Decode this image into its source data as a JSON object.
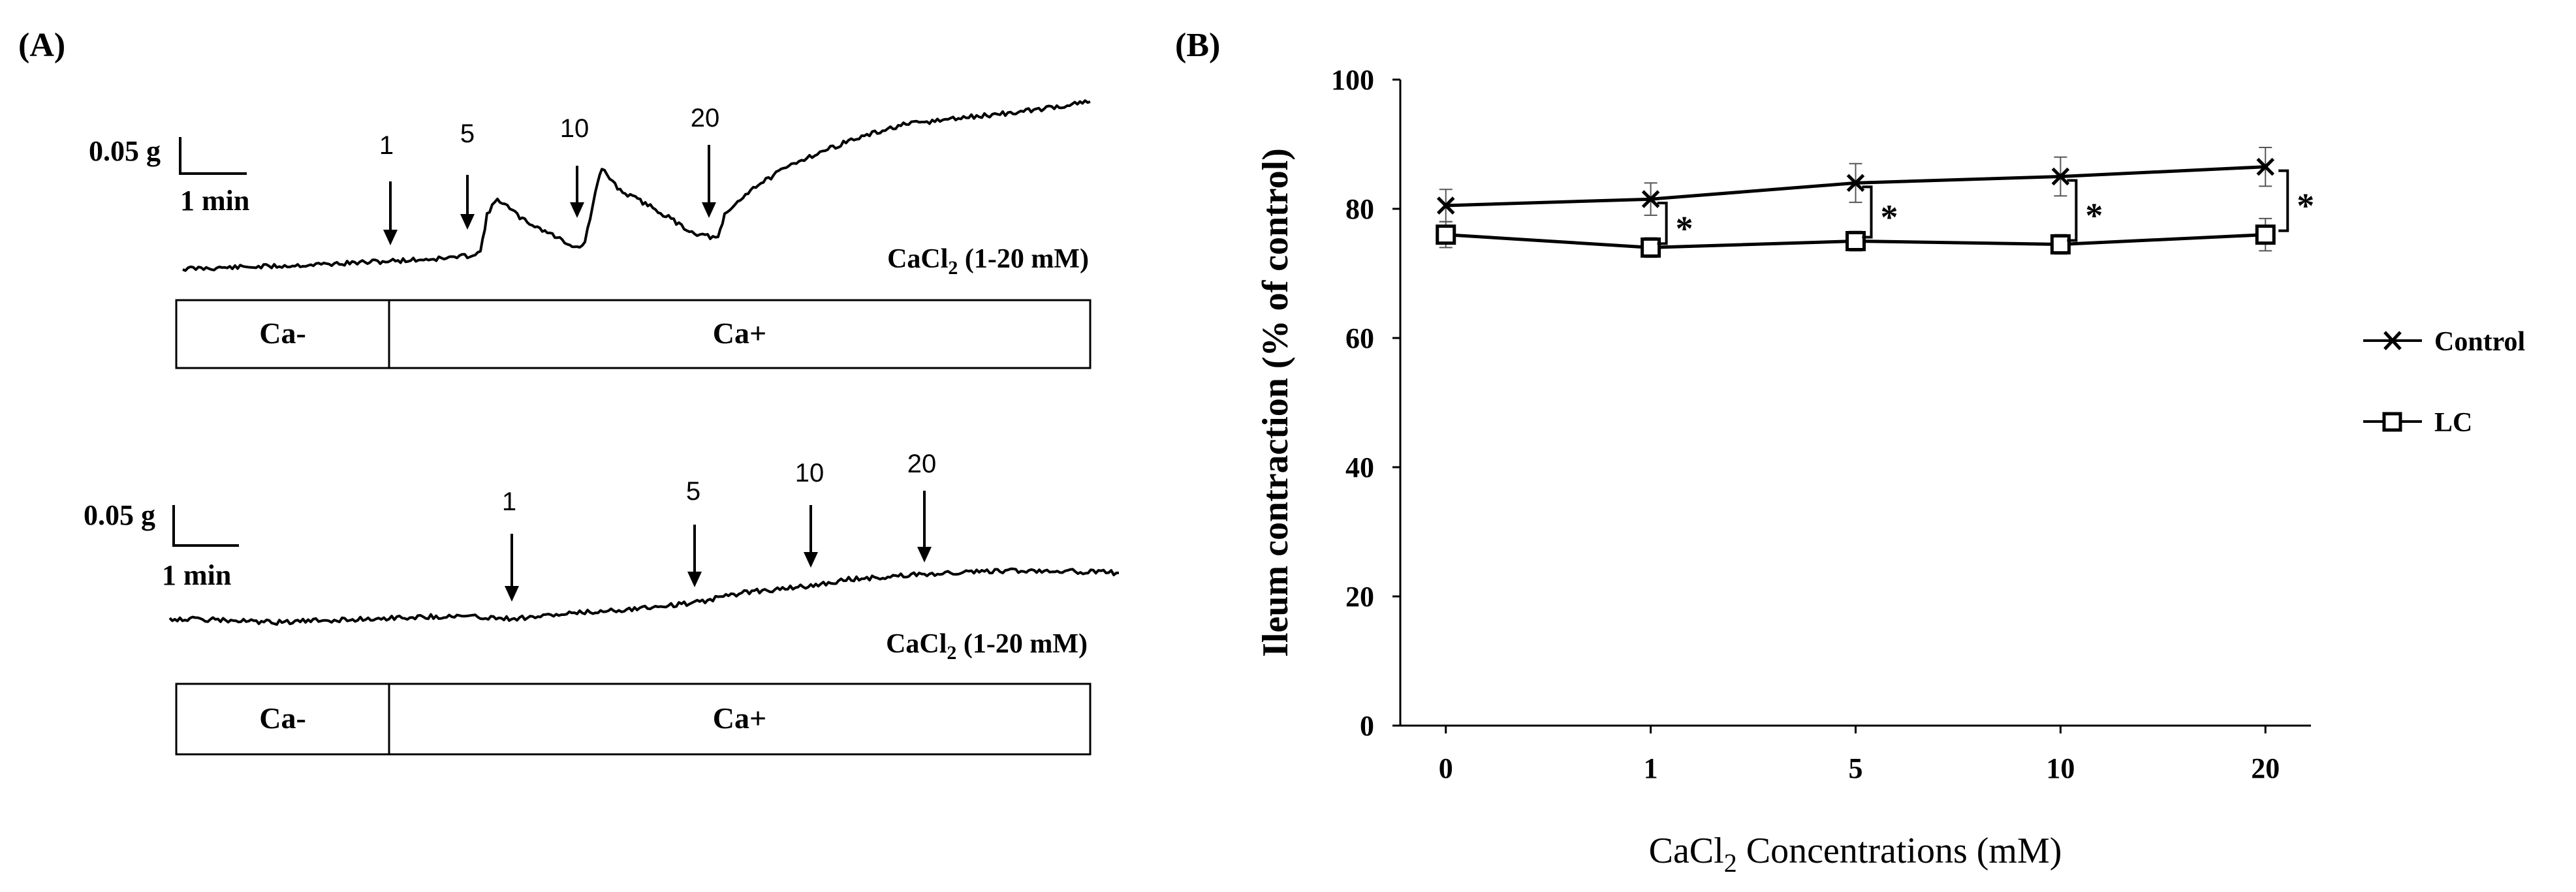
{
  "panel_a": {
    "label": "(A)",
    "trace1": {
      "scale_force": "0.05 g",
      "scale_time": "1 min",
      "arrows": [
        "1",
        "5",
        "10",
        "20"
      ],
      "caption_prefix": "CaCl",
      "caption_sub": "2",
      "caption_suffix": " (1-20 mM)",
      "box_left": "Ca-",
      "box_right": "Ca+"
    },
    "trace2": {
      "scale_force": "0.05 g",
      "scale_time": "1 min",
      "arrows": [
        "1",
        "5",
        "10",
        "20"
      ],
      "caption_prefix": "CaCl",
      "caption_sub": "2",
      "caption_suffix": " (1-20 mM)",
      "box_left": "Ca-",
      "box_right": "Ca+"
    }
  },
  "panel_b": {
    "label": "(B)",
    "significance_mark": "*"
  },
  "chart_data": {
    "type": "line",
    "title": "",
    "xlabel_prefix": "CaCl",
    "xlabel_sub": "2",
    "xlabel_suffix": " Concentrations (mM)",
    "ylabel": "Ileum contraction (% of control)",
    "categories": [
      "0",
      "1",
      "5",
      "10",
      "20"
    ],
    "yticks": [
      "0",
      "20",
      "40",
      "60",
      "80",
      "100"
    ],
    "ylim": [
      0,
      100
    ],
    "series": [
      {
        "name": "Control",
        "marker": "x",
        "values": [
          80.5,
          81.5,
          84.0,
          85.0,
          86.5
        ],
        "errors": [
          2.5,
          2.5,
          3.0,
          3.0,
          3.0
        ]
      },
      {
        "name": "LC",
        "marker": "square",
        "values": [
          76.0,
          74.0,
          75.0,
          74.5,
          76.0
        ],
        "errors": [
          2.0,
          1.5,
          1.5,
          1.5,
          2.5
        ]
      }
    ],
    "significance": [
      "1",
      "5",
      "10",
      "20"
    ],
    "legend_position": "right"
  }
}
